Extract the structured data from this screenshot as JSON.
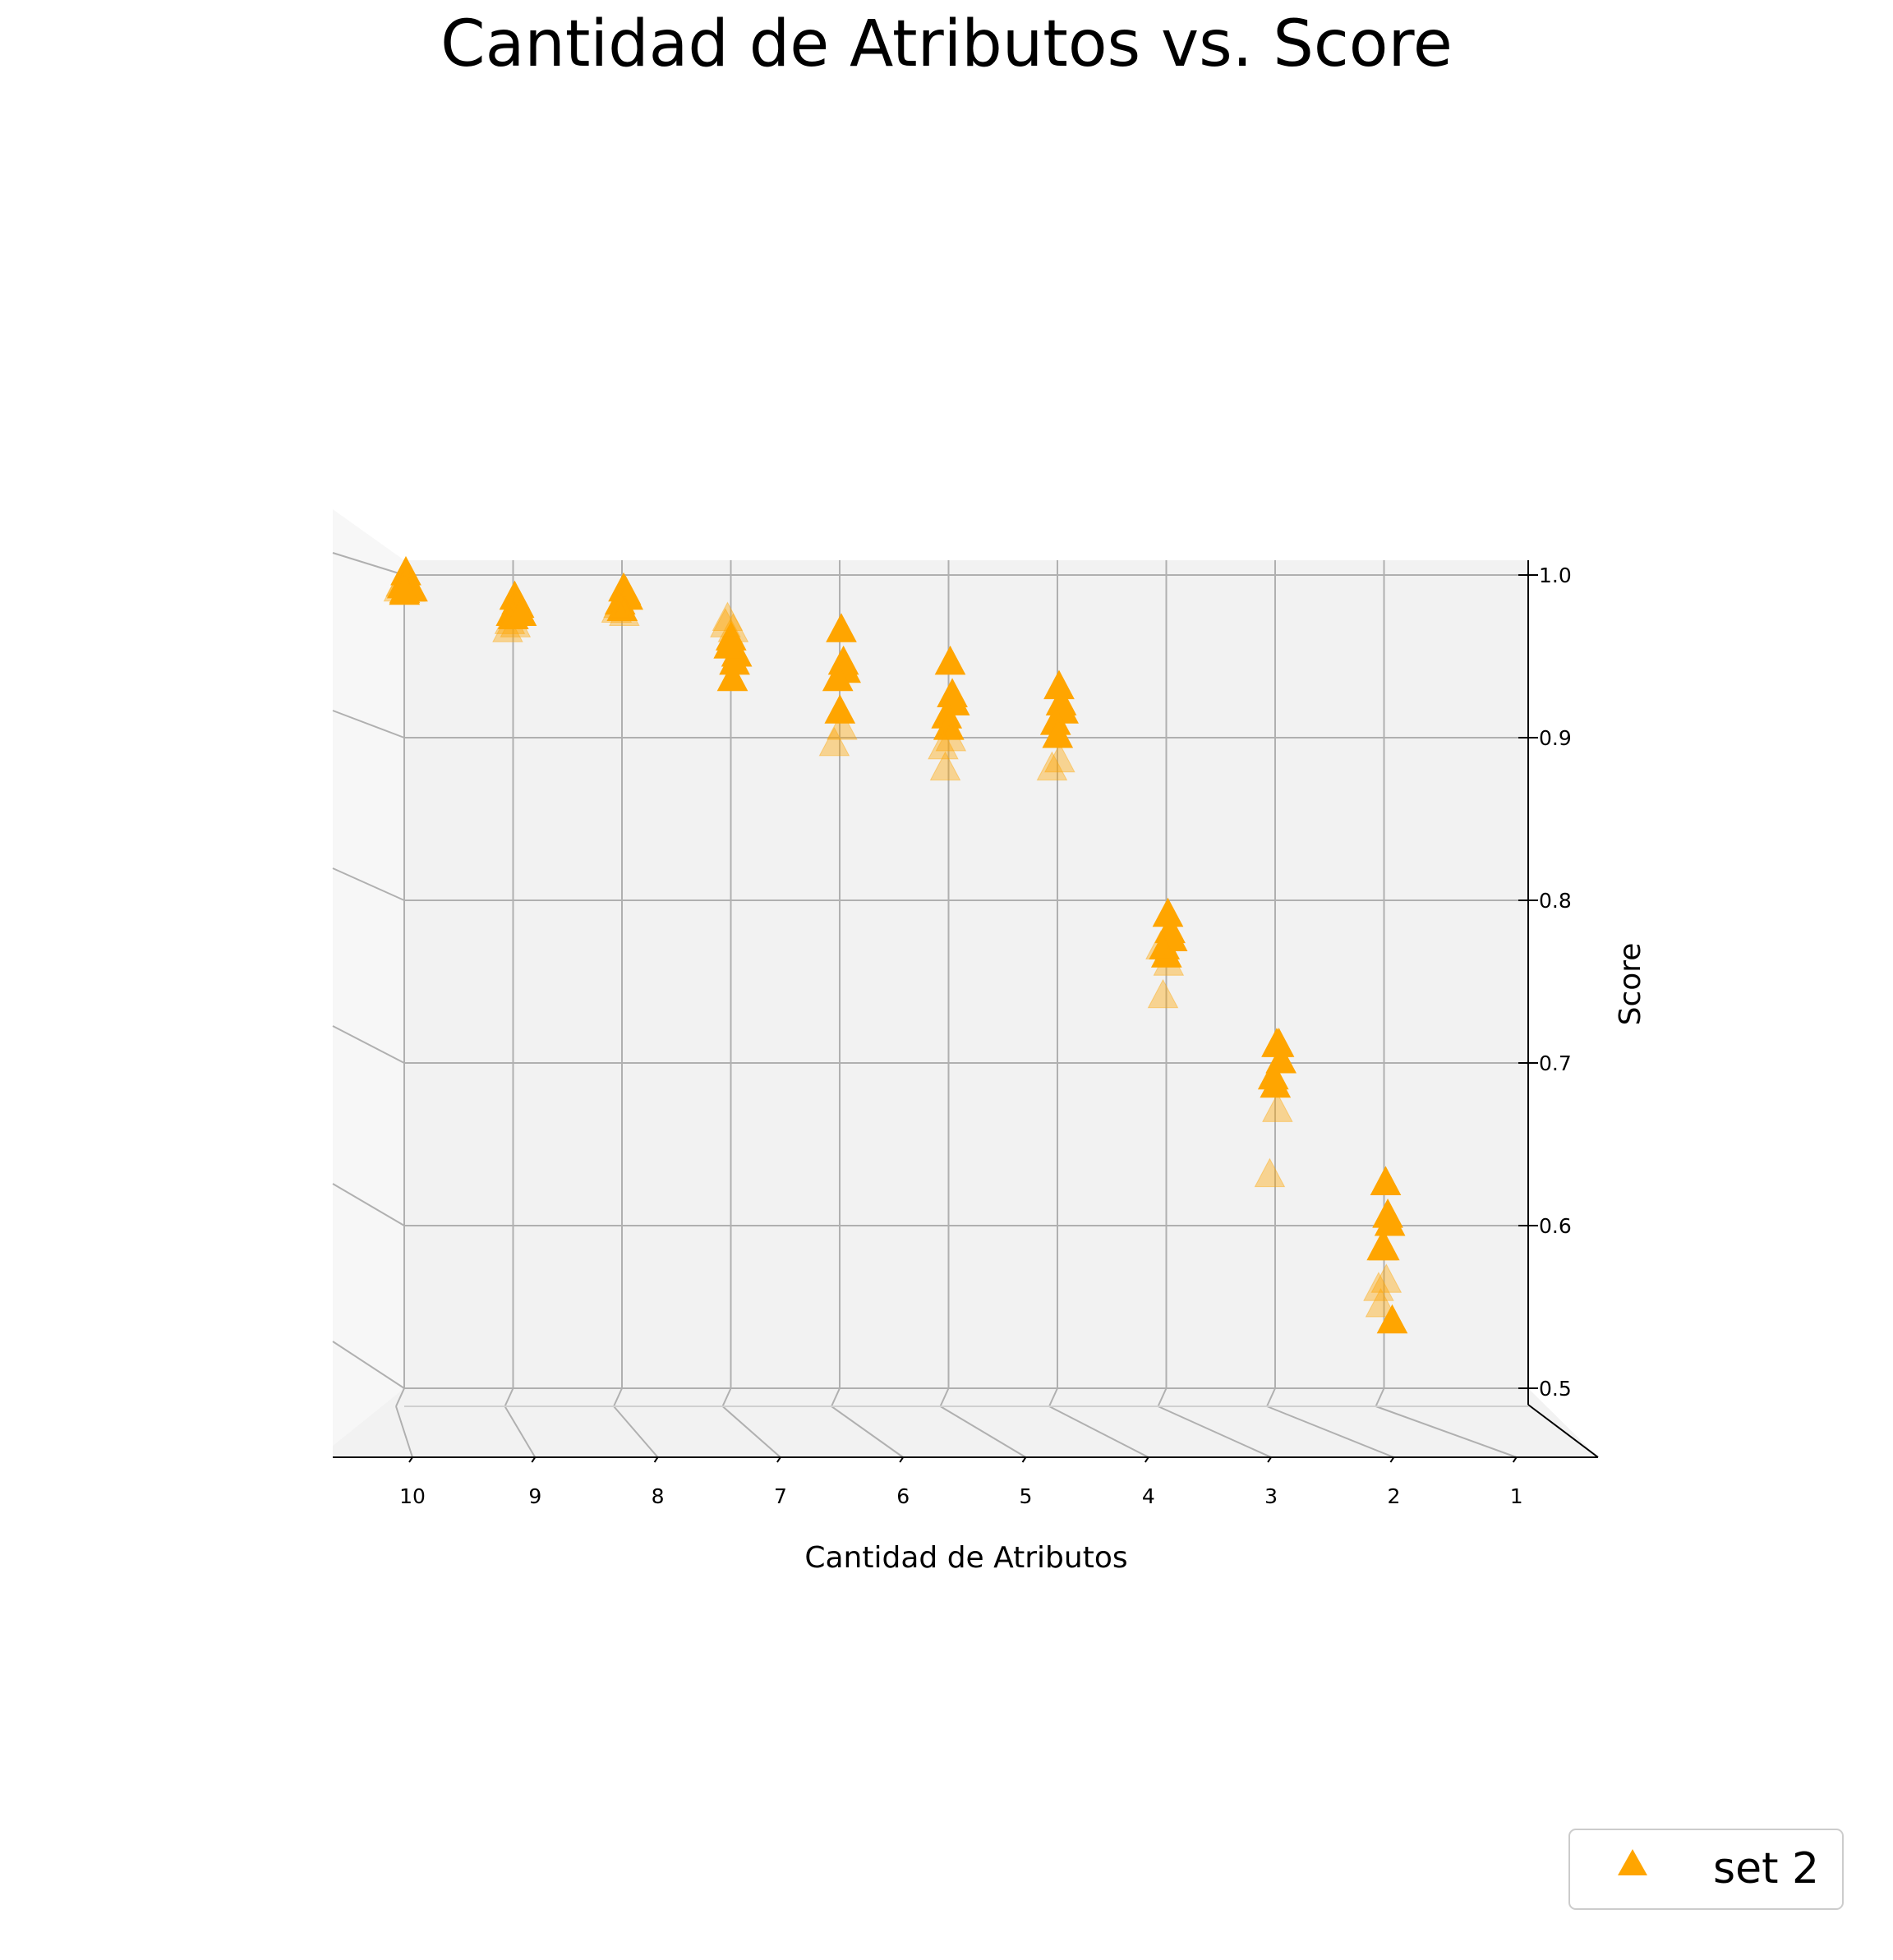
{
  "chart_data": {
    "type": "scatter",
    "title": "Cantidad de Atributos vs. Score",
    "xlabel": "Cantidad de Atributos",
    "ylabel": "Score",
    "x_ticks": [
      "10",
      "9",
      "8",
      "7",
      "6",
      "5",
      "4",
      "3",
      "2",
      "1"
    ],
    "y_ticks": [
      "0.5",
      "0.6",
      "0.7",
      "0.8",
      "0.9",
      "1.0"
    ],
    "xlim": [
      1,
      10
    ],
    "ylim": [
      0.5,
      1.0
    ],
    "x_axis_reversed": true,
    "grid": true,
    "projection": "3d",
    "marker": "triangle",
    "color": "#FFA500",
    "legend_position": "bottom-right",
    "series": [
      {
        "name": "set 2",
        "points": [
          [
            10,
            1.0
          ],
          [
            10,
            0.995
          ],
          [
            10,
            0.99
          ],
          [
            10,
            0.992
          ],
          [
            10,
            0.988
          ],
          [
            10,
            0.995
          ],
          [
            10,
            0.99
          ],
          [
            10,
            0.993
          ],
          [
            10,
            0.99
          ],
          [
            10,
            0.989
          ],
          [
            9,
            0.985
          ],
          [
            9,
            0.982
          ],
          [
            9,
            0.98
          ],
          [
            9,
            0.975
          ],
          [
            9,
            0.973
          ],
          [
            9,
            0.968
          ],
          [
            9,
            0.965
          ],
          [
            9,
            0.97
          ],
          [
            9,
            0.975
          ],
          [
            8,
            0.99
          ],
          [
            8,
            0.988
          ],
          [
            8,
            0.985
          ],
          [
            8,
            0.982
          ],
          [
            8,
            0.978
          ],
          [
            8,
            0.975
          ],
          [
            8,
            0.977
          ],
          [
            8,
            0.98
          ],
          [
            7,
            0.935
          ],
          [
            7,
            0.945
          ],
          [
            7,
            0.95
          ],
          [
            7,
            0.955
          ],
          [
            7,
            0.96
          ],
          [
            7,
            0.965
          ],
          [
            7,
            0.968
          ],
          [
            7,
            0.972
          ],
          [
            6,
            0.965
          ],
          [
            6,
            0.945
          ],
          [
            6,
            0.94
          ],
          [
            6,
            0.935
          ],
          [
            6,
            0.915
          ],
          [
            6,
            0.905
          ],
          [
            6,
            0.895
          ],
          [
            5,
            0.945
          ],
          [
            5,
            0.925
          ],
          [
            5,
            0.92
          ],
          [
            5,
            0.912
          ],
          [
            5,
            0.905
          ],
          [
            5,
            0.898
          ],
          [
            5,
            0.893
          ],
          [
            5,
            0.88
          ],
          [
            4,
            0.93
          ],
          [
            4,
            0.92
          ],
          [
            4,
            0.915
          ],
          [
            4,
            0.908
          ],
          [
            4,
            0.9
          ],
          [
            4,
            0.885
          ],
          [
            4,
            0.88
          ],
          [
            3,
            0.79
          ],
          [
            3,
            0.78
          ],
          [
            3,
            0.775
          ],
          [
            3,
            0.77
          ],
          [
            3,
            0.765
          ],
          [
            3,
            0.76
          ],
          [
            3,
            0.77
          ],
          [
            3,
            0.74
          ],
          [
            2,
            0.71
          ],
          [
            2,
            0.71
          ],
          [
            2,
            0.7
          ],
          [
            2,
            0.69
          ],
          [
            2,
            0.685
          ],
          [
            2,
            0.67
          ],
          [
            2,
            0.63
          ],
          [
            1,
            0.625
          ],
          [
            1,
            0.605
          ],
          [
            1,
            0.6
          ],
          [
            1,
            0.585
          ],
          [
            1,
            0.585
          ],
          [
            1,
            0.565
          ],
          [
            1,
            0.56
          ],
          [
            1,
            0.55
          ],
          [
            1,
            0.54
          ]
        ]
      }
    ]
  }
}
